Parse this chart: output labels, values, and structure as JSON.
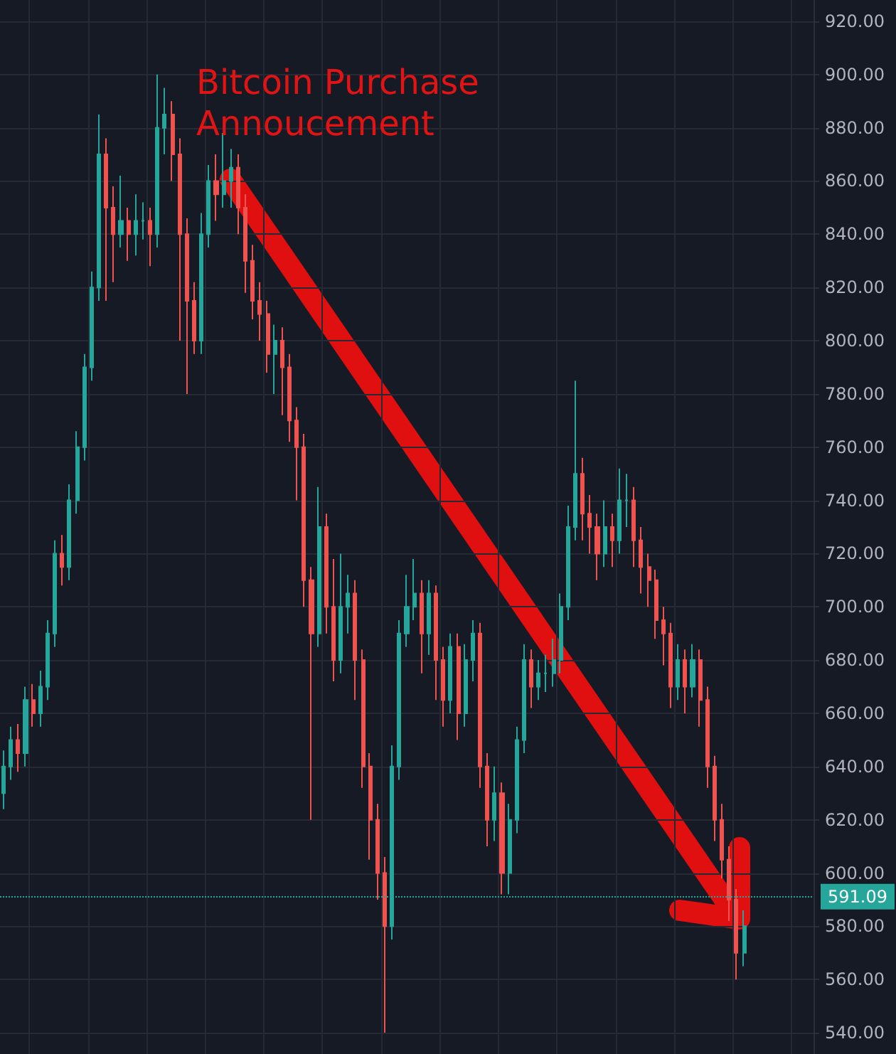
{
  "chart_data": {
    "type": "candlestick",
    "categories": [
      null,
      null,
      null,
      null,
      null,
      null,
      null,
      null,
      null,
      null,
      null,
      null,
      null,
      null,
      null,
      null,
      null,
      null,
      null,
      null,
      null,
      null,
      null,
      null,
      null,
      null,
      null,
      null,
      null,
      null,
      null,
      null,
      null,
      null,
      null,
      null,
      null,
      null,
      null,
      null,
      null,
      null,
      null,
      null,
      null,
      null,
      null,
      null,
      null,
      null,
      null,
      null,
      null,
      null,
      null,
      null,
      null,
      null,
      null,
      null,
      null,
      null,
      null,
      null,
      null,
      null,
      null,
      null,
      null,
      null,
      null,
      null,
      null,
      null,
      null,
      null,
      null,
      null,
      null,
      null,
      null,
      null,
      null,
      null,
      null,
      null,
      null,
      null,
      null,
      null,
      null,
      null,
      null,
      null,
      null,
      null,
      null,
      null,
      null,
      null,
      null,
      null,
      null,
      null,
      null,
      null,
      null,
      null,
      null,
      null,
      null
    ],
    "ohlc": [
      [
        630,
        646,
        624,
        640
      ],
      [
        640,
        655,
        635,
        650
      ],
      [
        650,
        656,
        638,
        645
      ],
      [
        645,
        670,
        640,
        665
      ],
      [
        665,
        671,
        655,
        660
      ],
      [
        660,
        676,
        655,
        670
      ],
      [
        670,
        695,
        665,
        690
      ],
      [
        690,
        725,
        685,
        720
      ],
      [
        720,
        727,
        708,
        715
      ],
      [
        715,
        746,
        710,
        740
      ],
      [
        740,
        766,
        735,
        760
      ],
      [
        760,
        795,
        755,
        790
      ],
      [
        790,
        826,
        785,
        820
      ],
      [
        820,
        885,
        815,
        870
      ],
      [
        870,
        876,
        815,
        850
      ],
      [
        850,
        858,
        822,
        840
      ],
      [
        840,
        862,
        835,
        845
      ],
      [
        845,
        850,
        830,
        840
      ],
      [
        840,
        855,
        832,
        845
      ],
      [
        845,
        852,
        838,
        845
      ],
      [
        845,
        850,
        828,
        840
      ],
      [
        840,
        900,
        835,
        880
      ],
      [
        880,
        895,
        870,
        885
      ],
      [
        885,
        890,
        860,
        870
      ],
      [
        870,
        876,
        800,
        840
      ],
      [
        840,
        846,
        780,
        815
      ],
      [
        815,
        822,
        795,
        800
      ],
      [
        800,
        848,
        795,
        840
      ],
      [
        840,
        866,
        835,
        860
      ],
      [
        860,
        870,
        845,
        855
      ],
      [
        855,
        878,
        850,
        860
      ],
      [
        860,
        872,
        850,
        865
      ],
      [
        865,
        870,
        840,
        850
      ],
      [
        850,
        855,
        818,
        830
      ],
      [
        830,
        836,
        808,
        815
      ],
      [
        815,
        822,
        800,
        810
      ],
      [
        810,
        815,
        788,
        795
      ],
      [
        795,
        806,
        780,
        800
      ],
      [
        800,
        805,
        772,
        790
      ],
      [
        790,
        795,
        762,
        770
      ],
      [
        770,
        775,
        740,
        760
      ],
      [
        760,
        765,
        700,
        710
      ],
      [
        710,
        715,
        620,
        690
      ],
      [
        690,
        745,
        685,
        730
      ],
      [
        730,
        735,
        690,
        700
      ],
      [
        700,
        718,
        672,
        680
      ],
      [
        680,
        720,
        675,
        700
      ],
      [
        700,
        712,
        690,
        705
      ],
      [
        705,
        710,
        665,
        680
      ],
      [
        680,
        684,
        632,
        640
      ],
      [
        640,
        645,
        605,
        620
      ],
      [
        620,
        626,
        590,
        600
      ],
      [
        600,
        606,
        540,
        580
      ],
      [
        580,
        648,
        575,
        640
      ],
      [
        640,
        695,
        635,
        690
      ],
      [
        690,
        712,
        685,
        700
      ],
      [
        700,
        718,
        695,
        705
      ],
      [
        705,
        710,
        675,
        690
      ],
      [
        690,
        710,
        682,
        705
      ],
      [
        705,
        708,
        665,
        680
      ],
      [
        680,
        685,
        655,
        665
      ],
      [
        665,
        690,
        660,
        685
      ],
      [
        685,
        690,
        650,
        660
      ],
      [
        660,
        686,
        655,
        680
      ],
      [
        680,
        695,
        672,
        690
      ],
      [
        690,
        694,
        632,
        640
      ],
      [
        640,
        645,
        610,
        620
      ],
      [
        620,
        640,
        612,
        630
      ],
      [
        630,
        634,
        592,
        600
      ],
      [
        600,
        626,
        592,
        620
      ],
      [
        620,
        655,
        615,
        650
      ],
      [
        650,
        686,
        645,
        680
      ],
      [
        680,
        684,
        662,
        670
      ],
      [
        670,
        680,
        665,
        675
      ],
      [
        675,
        682,
        668,
        675
      ],
      [
        675,
        688,
        670,
        680
      ],
      [
        680,
        705,
        675,
        700
      ],
      [
        700,
        738,
        695,
        730
      ],
      [
        730,
        785,
        725,
        750
      ],
      [
        750,
        756,
        725,
        735
      ],
      [
        735,
        742,
        720,
        730
      ],
      [
        730,
        735,
        710,
        720
      ],
      [
        720,
        740,
        715,
        730
      ],
      [
        730,
        735,
        715,
        725
      ],
      [
        725,
        752,
        720,
        740
      ],
      [
        740,
        750,
        730,
        740
      ],
      [
        740,
        745,
        715,
        725
      ],
      [
        725,
        730,
        705,
        715
      ],
      [
        715,
        720,
        700,
        710
      ],
      [
        710,
        714,
        688,
        695
      ],
      [
        695,
        700,
        678,
        690
      ],
      [
        690,
        694,
        662,
        670
      ],
      [
        670,
        686,
        665,
        680
      ],
      [
        680,
        684,
        660,
        670
      ],
      [
        670,
        686,
        666,
        680
      ],
      [
        680,
        684,
        655,
        665
      ],
      [
        665,
        670,
        632,
        640
      ],
      [
        640,
        644,
        612,
        620
      ],
      [
        620,
        626,
        598,
        605
      ],
      [
        605,
        610,
        582,
        590
      ],
      [
        590,
        594,
        560,
        570
      ],
      [
        570,
        586,
        565,
        580
      ],
      null,
      null,
      null,
      null,
      null,
      null,
      null,
      null,
      null
    ],
    "colors": [
      "#26a69a",
      "#26a69a",
      "#ef5350",
      "#26a69a",
      "#ef5350",
      "#26a69a",
      "#26a69a",
      "#26a69a",
      "#ef5350",
      "#26a69a",
      "#26a69a",
      "#26a69a",
      "#26a69a",
      "#26a69a",
      "#ef5350",
      "#ef5350",
      "#26a69a",
      "#ef5350",
      "#26a69a",
      "#26a69a",
      "#ef5350",
      "#26a69a",
      "#26a69a",
      "#ef5350",
      "#ef5350",
      "#ef5350",
      "#ef5350",
      "#26a69a",
      "#26a69a",
      "#ef5350",
      "#26a69a",
      "#26a69a",
      "#ef5350",
      "#ef5350",
      "#ef5350",
      "#ef5350",
      "#ef5350",
      "#26a69a",
      "#ef5350",
      "#ef5350",
      "#ef5350",
      "#ef5350",
      "#ef5350",
      "#26a69a",
      "#ef5350",
      "#ef5350",
      "#26a69a",
      "#26a69a",
      "#ef5350",
      "#ef5350",
      "#ef5350",
      "#ef5350",
      "#ef5350",
      "#26a69a",
      "#26a69a",
      "#26a69a",
      "#26a69a",
      "#ef5350",
      "#26a69a",
      "#ef5350",
      "#ef5350",
      "#26a69a",
      "#ef5350",
      "#26a69a",
      "#26a69a",
      "#ef5350",
      "#ef5350",
      "#26a69a",
      "#ef5350",
      "#26a69a",
      "#26a69a",
      "#26a69a",
      "#ef5350",
      "#26a69a",
      "#26a69a",
      "#26a69a",
      "#26a69a",
      "#26a69a",
      "#26a69a",
      "#ef5350",
      "#ef5350",
      "#ef5350",
      "#26a69a",
      "#ef5350",
      "#26a69a",
      "#26a69a",
      "#ef5350",
      "#ef5350",
      "#ef5350",
      "#ef5350",
      "#ef5350",
      "#ef5350",
      "#26a69a",
      "#ef5350",
      "#26a69a",
      "#ef5350",
      "#ef5350",
      "#ef5350",
      "#ef5350",
      "#ef5350",
      "#ef5350",
      "#26a69a",
      null,
      null,
      null,
      null,
      null,
      null,
      null,
      null,
      null
    ],
    "ylim": [
      532,
      928
    ],
    "yticks": [
      {
        "value": 540,
        "label": "540.00"
      },
      {
        "value": 560,
        "label": "560.00"
      },
      {
        "value": 580,
        "label": "580.00"
      },
      {
        "value": 600,
        "label": "600.00"
      },
      {
        "value": 620,
        "label": "620.00"
      },
      {
        "value": 640,
        "label": "640.00"
      },
      {
        "value": 660,
        "label": "660.00"
      },
      {
        "value": 680,
        "label": "680.00"
      },
      {
        "value": 700,
        "label": "700.00"
      },
      {
        "value": 720,
        "label": "720.00"
      },
      {
        "value": 740,
        "label": "740.00"
      },
      {
        "value": 760,
        "label": "760.00"
      },
      {
        "value": 780,
        "label": "780.00"
      },
      {
        "value": 800,
        "label": "800.00"
      },
      {
        "value": 820,
        "label": "820.00"
      },
      {
        "value": 840,
        "label": "840.00"
      },
      {
        "value": 860,
        "label": "860.00"
      },
      {
        "value": 880,
        "label": "880.00"
      },
      {
        "value": 900,
        "label": "900.00"
      },
      {
        "value": 920,
        "label": "920.00"
      }
    ],
    "ref_lines": [
      {
        "axis": "y",
        "value": 591.09,
        "label": "591.09",
        "color": "#26a69a",
        "line_style": "dotted"
      }
    ],
    "annotations": [
      "Bitcoin Purchase Annoucement"
    ],
    "grid": true,
    "tick_labels": "y"
  }
}
